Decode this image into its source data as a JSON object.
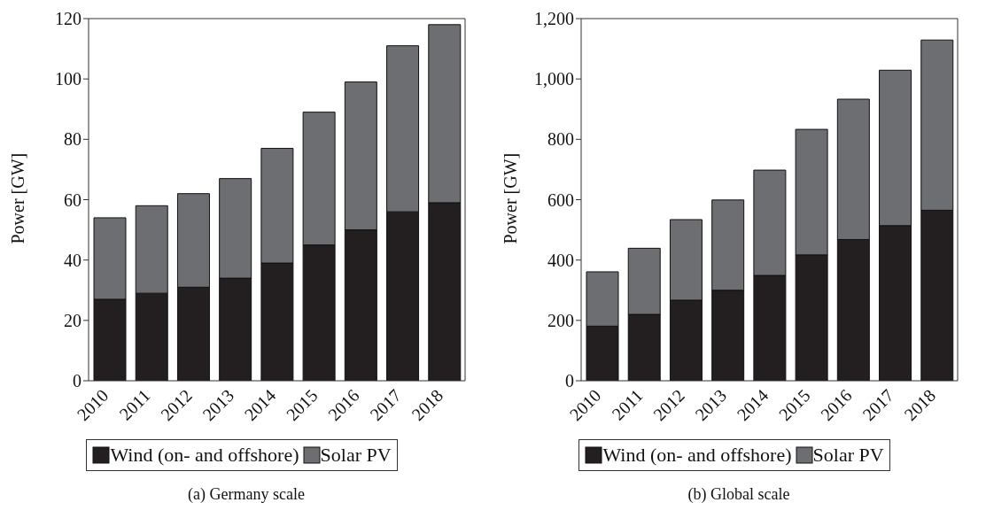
{
  "chart_data": [
    {
      "type": "bar",
      "stacked": true,
      "categories": [
        "2010",
        "2011",
        "2012",
        "2013",
        "2014",
        "2015",
        "2016",
        "2017",
        "2018"
      ],
      "ylabel": "Power [GW]",
      "ylim": [
        0,
        120
      ],
      "yticks": [
        0,
        20,
        40,
        60,
        80,
        100,
        120
      ],
      "legend": "bottom",
      "annotations": [
        "(a) Germany scale"
      ],
      "series": [
        {
          "name": "Wind (on- and offshore)",
          "color": "#231f20",
          "values": [
            27,
            29,
            31,
            34,
            39,
            45,
            50,
            56,
            59
          ]
        },
        {
          "name": "Solar PV",
          "color": "#6d6e71",
          "values": [
            27,
            29,
            31,
            33,
            38,
            44,
            49,
            55,
            59
          ]
        }
      ]
    },
    {
      "type": "bar",
      "stacked": true,
      "categories": [
        "2010",
        "2011",
        "2012",
        "2013",
        "2014",
        "2015",
        "2016",
        "2017",
        "2018"
      ],
      "ylabel": "Power [GW]",
      "ylim": [
        0,
        1200
      ],
      "yticks": [
        0,
        200,
        400,
        600,
        800,
        {
          "value": 1000,
          "label": "1,000"
        },
        {
          "value": 1200,
          "label": "1,200"
        }
      ],
      "legend": "bottom",
      "annotations": [
        "(b) Global scale"
      ],
      "series": [
        {
          "name": "Wind (on- and offshore)",
          "color": "#231f20",
          "values": [
            181,
            220,
            267,
            300,
            349,
            417,
            468,
            514,
            565
          ]
        },
        {
          "name": "Solar PV",
          "color": "#6d6e71",
          "values": [
            180,
            219,
            267,
            299,
            349,
            416,
            465,
            515,
            564
          ]
        }
      ]
    }
  ]
}
